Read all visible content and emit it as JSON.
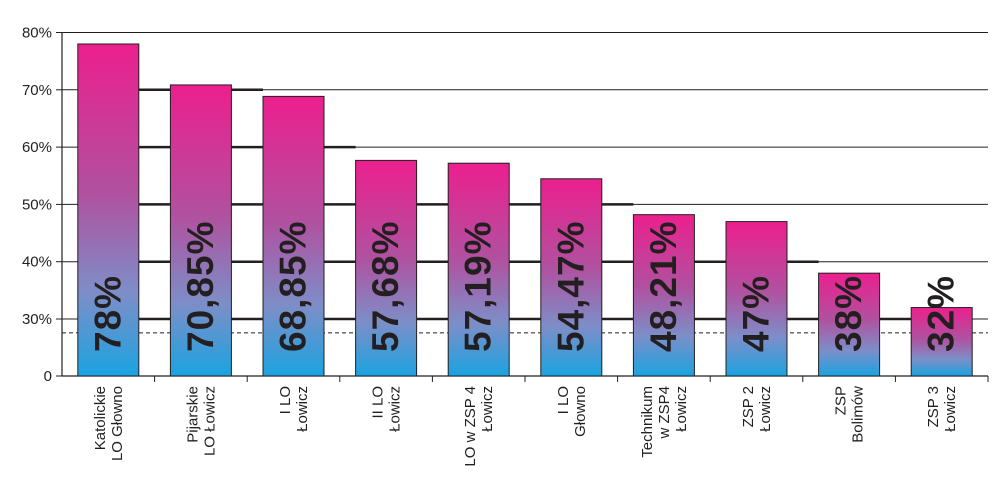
{
  "chart_data": {
    "type": "bar",
    "categories": [
      "Katolickie\nLO Głowno",
      "Pijarskie\nLO Łowicz",
      "I LO\nŁowicz",
      "II LO\nŁowicz",
      "LO w ZSP 4\nŁowicz",
      "I LO\nGłowno",
      "Technikum\nw ZSP4\nŁowicz",
      "ZSP 2\nŁowicz",
      "ZSP\nBolimów",
      "ZSP 3\nŁowicz"
    ],
    "values": [
      78,
      70.85,
      68.85,
      57.68,
      57.19,
      54.47,
      48.21,
      47,
      38,
      32
    ],
    "value_labels": [
      "78%",
      "70,85%",
      "68,85%",
      "57,68%",
      "57,19%",
      "54,47%",
      "48,21%",
      "47%",
      "38%",
      "32%"
    ],
    "y_ticks": [
      {
        "value": 0,
        "label": "0"
      },
      {
        "value": 30,
        "label": "30%"
      },
      {
        "value": 40,
        "label": "40%"
      },
      {
        "value": 50,
        "label": "50%"
      },
      {
        "value": 60,
        "label": "60%"
      },
      {
        "value": 70,
        "label": "70%"
      },
      {
        "value": 80,
        "label": "80%"
      }
    ],
    "reference_line": 22.7,
    "title": "",
    "xlabel": "",
    "ylabel": "",
    "grid": true,
    "colors": {
      "bar_top": "#ec1f8e",
      "bar_mid": "#8e7fc0",
      "bar_bottom": "#1aa3e0",
      "grid": "#231f20",
      "text": "#231f20"
    }
  }
}
